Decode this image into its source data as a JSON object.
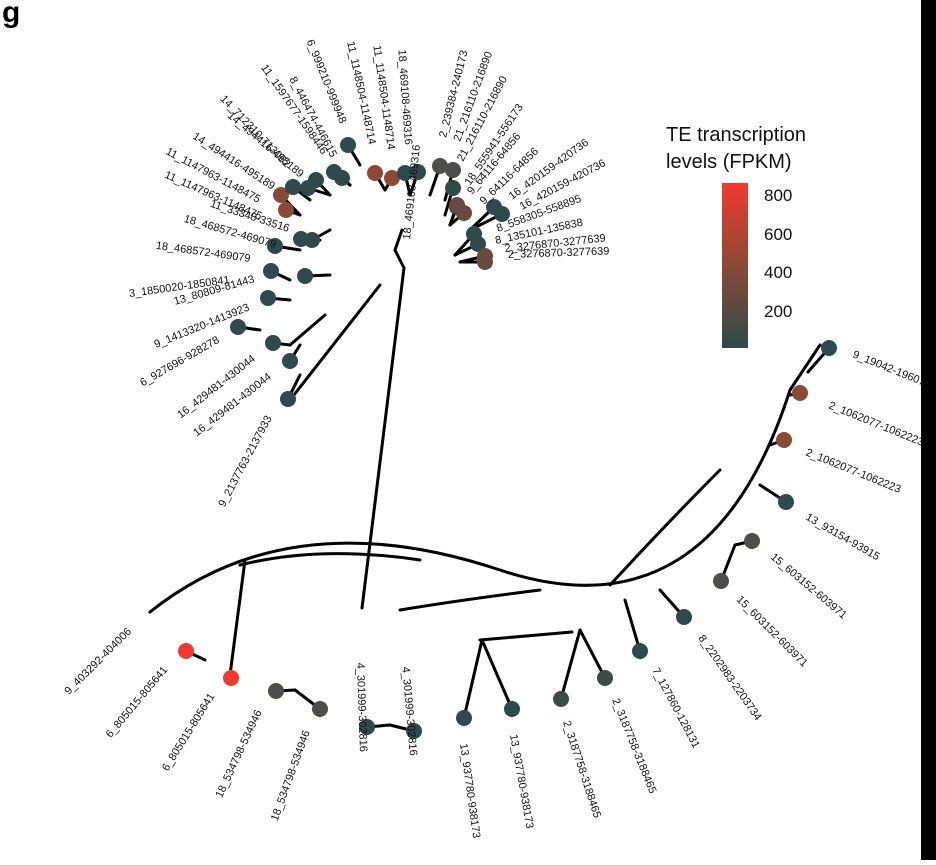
{
  "panel_letter": "g",
  "legend": {
    "title_line1": "TE transcription",
    "title_line2": "levels (FPKM)",
    "ticks": [
      "800",
      "600",
      "400",
      "200"
    ],
    "color_low": "#2e4a4a",
    "color_mid": "#8a4a35",
    "color_high": "#f03a2e"
  },
  "tips": [
    {
      "label": "9_19042-19607",
      "color": "#2e4a4a"
    },
    {
      "label": "2_1062077-1062223",
      "color": "#8a4a35"
    },
    {
      "label": "2_1062077-1062223",
      "color": "#8a4a35"
    },
    {
      "label": "13_93154-93915",
      "color": "#2e4a4a"
    },
    {
      "label": "15_603152-603971",
      "color": "#4d4d4a"
    },
    {
      "label": "15_603152-603971",
      "color": "#4d4d4a"
    },
    {
      "label": "8_2202983-2203734",
      "color": "#2e4a4a"
    },
    {
      "label": "7_127860-128131",
      "color": "#2e4a4a"
    },
    {
      "label": "2_3187758-3188465",
      "color": "#3d4a48"
    },
    {
      "label": "2_3187758-3188465",
      "color": "#3d4a48"
    },
    {
      "label": "13_937780-938173",
      "color": "#2e4a4a"
    },
    {
      "label": "13_937780-938173",
      "color": "#2e4a4a"
    },
    {
      "label": "4_301999-302816",
      "color": "#2e4a4a"
    },
    {
      "label": "4_301999-302816",
      "color": "#2e4a4a"
    },
    {
      "label": "18_534798-534946",
      "color": "#4d4d4a"
    },
    {
      "label": "18_534798-534946",
      "color": "#4d4d4a"
    },
    {
      "label": "6_805015-805641",
      "color": "#f03a2e"
    },
    {
      "label": "6_805015-805641",
      "color": "#f03a2e"
    },
    {
      "label": "9_403292-404006",
      "color": ""
    },
    {
      "label": "9_2137763-2137933",
      "color": "#2e4a4a"
    },
    {
      "label": "16_429481-430044",
      "color": "#2e4a4a"
    },
    {
      "label": "16_429481-430044",
      "color": "#2e4a4a"
    },
    {
      "label": "6_927696-928278",
      "color": "#2e4a4a"
    },
    {
      "label": "9_1413320-1413923",
      "color": "#2e4a4a"
    },
    {
      "label": "13_80809-81443",
      "color": "#2e4a4a"
    },
    {
      "label": "3_1850020-1850841",
      "color": "#2e4a4a"
    },
    {
      "label": "18_468572-469079",
      "color": "#2e4a4a"
    },
    {
      "label": "18_468572-469079",
      "color": "#2e4a4a"
    },
    {
      "label": "11_33348-33516",
      "color": "#2e4a4a"
    },
    {
      "label": "11_1147963-1148475",
      "color": "#8a4a35"
    },
    {
      "label": "11_1147963-1148475",
      "color": "#8a4a35"
    },
    {
      "label": "14_494416-495189",
      "color": "#2e4a4a"
    },
    {
      "label": "14_494416-495189",
      "color": "#2e4a4a"
    },
    {
      "label": "14_712310-713062",
      "color": "#2e4a4a"
    },
    {
      "label": "11_1597677-1598446",
      "color": "#2e4a4a"
    },
    {
      "label": "8_446474-446615",
      "color": "#2e4a4a"
    },
    {
      "label": "6_999210-999948",
      "color": "#2e4a4a"
    },
    {
      "label": "11_1148504-1148714",
      "color": "#8a4a35"
    },
    {
      "label": "11_1148504-1148714",
      "color": "#8a4a35"
    },
    {
      "label": "18_469108-469316",
      "color": "#2e4a4a"
    },
    {
      "label": "18_469108-469316",
      "color": "#2e4a4a"
    },
    {
      "label": "2_239384-240173",
      "color": "#4d4d4a"
    },
    {
      "label": "21_216110-216890",
      "color": "#4d4d4a"
    },
    {
      "label": "21_216110-216890",
      "color": "#2e4a4a"
    },
    {
      "label": "18_555941-556173",
      "color": "#2e4a4a"
    },
    {
      "label": "9_64116-64856",
      "color": "#6a4a40"
    },
    {
      "label": "9_64116-64856",
      "color": "#6a4a40"
    },
    {
      "label": "16_420159-420736",
      "color": "#2e4a4a"
    },
    {
      "label": "16_420159-420736",
      "color": "#2e4a4a"
    },
    {
      "label": "8_558305-558895",
      "color": "#2e4a4a"
    },
    {
      "label": "8_135101-135838",
      "color": "#2e4a4a"
    },
    {
      "label": "2_3276870-3277639",
      "color": "#6a4a40"
    },
    {
      "label": "2_3276870-3277639",
      "color": "#6a4a40"
    }
  ]
}
